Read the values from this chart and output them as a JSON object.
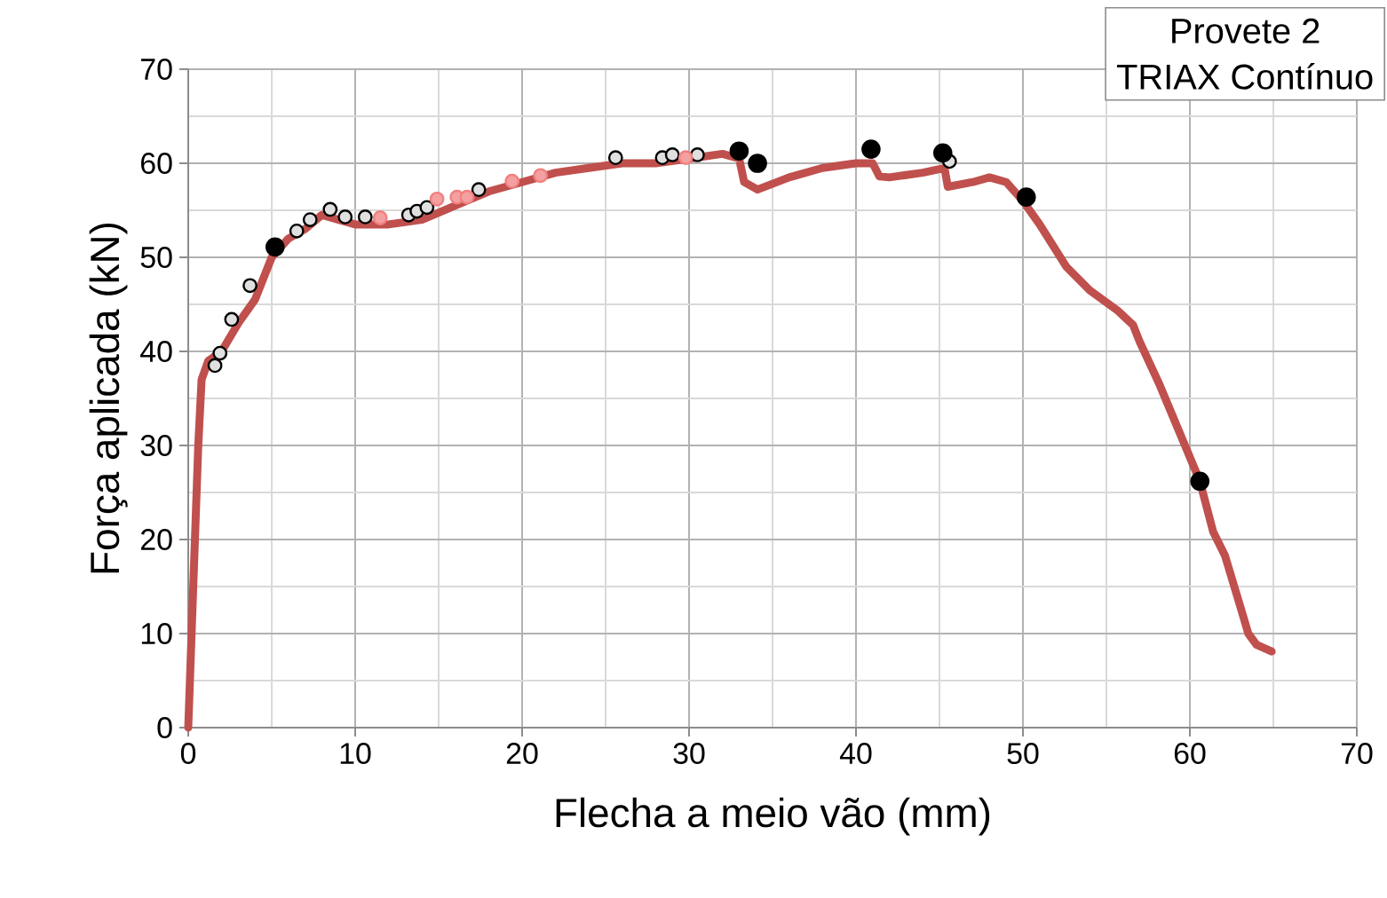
{
  "chart_data": {
    "type": "line",
    "annotations": [
      "Provete 2",
      "TRIAX Contínuo"
    ],
    "xlabel": "Flecha a meio vão (mm)",
    "ylabel": "Força aplicada (kN)",
    "xlim": [
      0,
      70
    ],
    "ylim": [
      0,
      70
    ],
    "xticks": [
      0,
      10,
      20,
      30,
      40,
      50,
      60,
      70
    ],
    "yticks": [
      0,
      10,
      20,
      30,
      40,
      50,
      60,
      70
    ],
    "grid": true,
    "series": [
      {
        "color": "#c0504d",
        "marker": "none",
        "x": [
          0,
          0.3,
          0.6,
          0.8,
          1.2,
          2,
          3,
          4,
          5,
          6,
          7,
          8,
          9,
          10,
          12,
          14,
          16,
          18,
          20,
          22,
          24,
          26,
          28,
          30,
          32,
          33,
          33.3,
          34.1,
          36,
          38,
          40,
          41,
          41.4,
          42,
          44,
          45.3,
          45.5,
          47,
          48,
          49,
          50,
          51,
          52.6,
          54,
          55.7,
          56.6,
          57,
          58.2,
          59,
          60.6,
          61.4,
          62.1,
          63,
          63.5,
          64,
          64.9
        ],
        "values": [
          0,
          15,
          30,
          37,
          39,
          40,
          43,
          45.5,
          50,
          52,
          53,
          54.5,
          54,
          53.5,
          53.5,
          54,
          55.5,
          57,
          58,
          59,
          59.5,
          60,
          60,
          60.5,
          61,
          60.5,
          58,
          57.2,
          58.5,
          59.5,
          60,
          60,
          58.6,
          58.5,
          59,
          59.5,
          57.5,
          58,
          58.5,
          58,
          56,
          53.5,
          49,
          46.5,
          44.3,
          42.8,
          41,
          36.4,
          33,
          26.2,
          20.8,
          18.3,
          13,
          10,
          8.8,
          8.1
        ]
      },
      {
        "type": "scatter",
        "color": "#e0e0e0",
        "marker": "circle",
        "x": [
          1.6,
          1.9,
          2.6,
          3.7,
          6.5,
          7.3,
          8.5,
          9.4,
          10.6,
          13.2,
          13.7,
          14.3,
          17.4,
          25.6,
          28.4,
          29.0,
          30.5,
          45.6
        ],
        "values": [
          38.5,
          39.8,
          43.4,
          47.0,
          52.8,
          54.0,
          55.1,
          54.3,
          54.3,
          54.5,
          54.9,
          55.3,
          57.2,
          60.6,
          60.6,
          60.9,
          60.9,
          60.2
        ]
      },
      {
        "type": "scatter",
        "color": "#f4a0a0",
        "marker": "circle",
        "x": [
          11.5,
          14.9,
          16.1,
          16.7,
          19.4,
          21.1,
          29.8
        ],
        "values": [
          54.2,
          56.2,
          56.4,
          56.4,
          58.1,
          58.7,
          60.6
        ]
      },
      {
        "type": "scatter",
        "color": "#000000",
        "marker": "circle",
        "x": [
          5.2,
          33.0,
          34.1,
          40.9,
          45.2,
          50.2,
          60.6
        ],
        "values": [
          51.1,
          61.3,
          60.0,
          61.5,
          61.1,
          56.4,
          26.2
        ]
      }
    ]
  }
}
